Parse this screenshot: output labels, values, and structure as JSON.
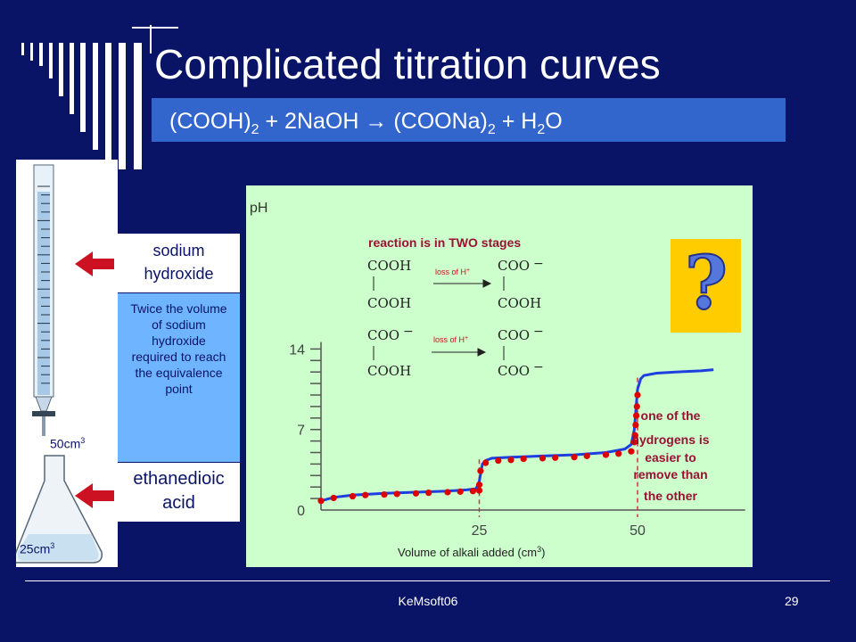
{
  "slide": {
    "title": "Complicated titration curves",
    "equation": {
      "reactant1": "(COOH)",
      "sub1": "2",
      "plus1": " + 2NaOH ",
      "arrow": "→",
      "product1": " (COONa)",
      "sub2": "2",
      "plus2": " + H",
      "sub3": "2",
      "tail": "O"
    },
    "footer": {
      "center": "KeMsoft06",
      "page": "29"
    }
  },
  "apparatus": {
    "naoh_label_1": "sodium",
    "naoh_label_2": "hydroxide",
    "explanation": "Twice the volume of sodium hydroxide required to reach the equivalence point",
    "acid_label_1": "ethanedioic",
    "acid_label_2": "acid",
    "burette_volume": "50cm",
    "burette_sup": "3",
    "flask_volume": "25cm",
    "flask_sup": "3"
  },
  "chart_labels": {
    "ylabel": "pH",
    "xlabel": "Volume of alkali added (cm",
    "xlabel_sup": "3",
    "xlabel_end": ")",
    "stages_title": "reaction is in TWO stages",
    "loss1": "loss of H",
    "loss2": "loss of H",
    "loss_sup": "+",
    "cooh": "COOH",
    "coo": "COO",
    "easier_1": "one of the",
    "easier_2": "hydrogens is",
    "easier_3": "easier to",
    "easier_4": "remove than",
    "easier_5": "the other",
    "question_mark": "?"
  },
  "chart_data": {
    "type": "line",
    "xlabel": "Volume of alkali added (cm3)",
    "ylabel": "pH",
    "xlim": [
      0,
      65
    ],
    "ylim": [
      0,
      14
    ],
    "x_ticks": [
      25,
      50
    ],
    "y_ticks": [
      0,
      7,
      14
    ],
    "equivalence_points": [
      25,
      50
    ],
    "curve": {
      "x": [
        0,
        2,
        5,
        10,
        15,
        20,
        23,
        24.5,
        25,
        25.5,
        26,
        27,
        30,
        35,
        40,
        45,
        48,
        49,
        49.5,
        50,
        50.5,
        51,
        53,
        56,
        60,
        62
      ],
      "y": [
        0.8,
        1.1,
        1.3,
        1.45,
        1.55,
        1.65,
        1.75,
        1.85,
        2.5,
        4.0,
        4.3,
        4.5,
        4.6,
        4.7,
        4.8,
        5.0,
        5.3,
        5.7,
        7.0,
        10.5,
        11.4,
        11.7,
        11.9,
        12.0,
        12.1,
        12.2
      ]
    },
    "points": {
      "x": [
        0,
        2,
        5,
        7,
        10,
        12,
        15,
        17,
        20,
        22,
        24,
        25,
        25,
        25.2,
        26,
        28,
        30,
        32,
        35,
        37,
        40,
        42,
        45,
        47,
        49,
        49.5,
        49.6,
        49.7,
        49.8,
        49.9,
        50
      ],
      "y": [
        0.8,
        1.05,
        1.2,
        1.3,
        1.35,
        1.4,
        1.45,
        1.5,
        1.55,
        1.6,
        1.65,
        1.7,
        2.2,
        3.4,
        4.1,
        4.3,
        4.35,
        4.45,
        4.5,
        4.55,
        4.6,
        4.7,
        4.8,
        4.9,
        5.1,
        5.9,
        6.5,
        7.4,
        8.2,
        9.0,
        10.0
      ]
    }
  },
  "colors": {
    "background": "#0A1466",
    "bar": "#3366CC",
    "chart_bg": "#CCFFCC",
    "curve": "#1E3FE0",
    "points": "#DD0000",
    "question_box": "#FFCC00",
    "question_mark": "#5577DD"
  }
}
